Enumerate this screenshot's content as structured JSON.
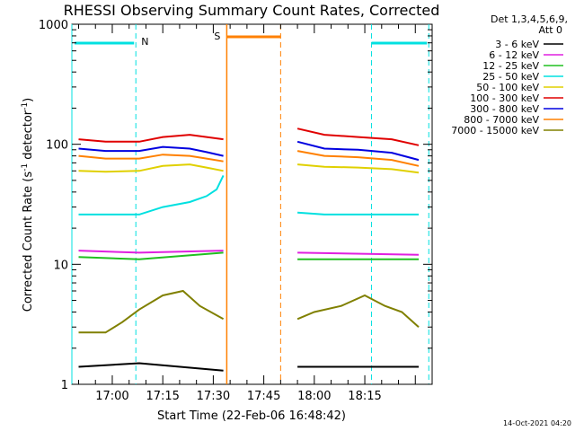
{
  "chart_data": {
    "type": "line",
    "title": "RHESSI Observing Summary Count Rates, Corrected",
    "xlabel": "Start Time (22-Feb-06 16:48:42)",
    "ylabel": "Corrected Count Rate (s",
    "ylabel_sup": "-1",
    "ylabel_tail": " detector",
    "ylabel_sup2": "-1",
    "ylabel_close": ")",
    "y_scale": "log",
    "ylim": [
      1,
      1000
    ],
    "xlim_minutes_after_start": [
      0,
      107
    ],
    "x_ticks": [
      {
        "minute": 12,
        "label": "17:00"
      },
      {
        "minute": 27,
        "label": "17:15"
      },
      {
        "minute": 42,
        "label": "17:30"
      },
      {
        "minute": 57,
        "label": "17:45"
      },
      {
        "minute": 72,
        "label": "18:00"
      },
      {
        "minute": 87,
        "label": "18:15"
      }
    ],
    "y_ticks": [
      {
        "value": 1,
        "label": "1"
      },
      {
        "value": 10,
        "label": "10"
      },
      {
        "value": 100,
        "label": "100"
      },
      {
        "value": 1000,
        "label": "1000"
      }
    ],
    "legend_header": [
      "Det 1,3,4,5,6,9,",
      "Att 0"
    ],
    "legend_placement": "right",
    "series": [
      {
        "name": "3 - 6 keV",
        "color": "#000000",
        "segments": [
          {
            "x": [
              2,
              20,
              45
            ],
            "y": [
              1.4,
              1.5,
              1.3
            ]
          },
          {
            "x": [
              67,
              103
            ],
            "y": [
              1.4,
              1.4
            ]
          }
        ]
      },
      {
        "name": "6 - 12 keV",
        "color": "#e020e0",
        "segments": [
          {
            "x": [
              2,
              20,
              45
            ],
            "y": [
              13,
              12.5,
              13
            ]
          },
          {
            "x": [
              67,
              103
            ],
            "y": [
              12.5,
              12
            ]
          }
        ]
      },
      {
        "name": "12 - 25 keV",
        "color": "#20c020",
        "segments": [
          {
            "x": [
              2,
              20,
              45
            ],
            "y": [
              11.5,
              11,
              12.5
            ]
          },
          {
            "x": [
              67,
              103
            ],
            "y": [
              11,
              11
            ]
          }
        ]
      },
      {
        "name": "25 - 50 keV",
        "color": "#00e0e0",
        "segments": [
          {
            "x": [
              2,
              10,
              20,
              27,
              35,
              40,
              43,
              45
            ],
            "y": [
              26,
              26,
              26,
              30,
              33,
              37,
              42,
              55
            ]
          },
          {
            "x": [
              67,
              75,
              85,
              95,
              103
            ],
            "y": [
              27,
              26,
              26,
              26,
              26
            ]
          }
        ]
      },
      {
        "name": "50 - 100 keV",
        "color": "#e0d000",
        "segments": [
          {
            "x": [
              2,
              10,
              20,
              27,
              35,
              40,
              45
            ],
            "y": [
              60,
              59,
              60,
              66,
              68,
              64,
              60
            ]
          },
          {
            "x": [
              67,
              75,
              85,
              95,
              103
            ],
            "y": [
              68,
              65,
              64,
              62,
              58
            ]
          }
        ]
      },
      {
        "name": "100 - 300 keV",
        "color": "#e00000",
        "segments": [
          {
            "x": [
              2,
              10,
              20,
              27,
              35,
              40,
              45
            ],
            "y": [
              110,
              105,
              105,
              115,
              120,
              115,
              110
            ]
          },
          {
            "x": [
              67,
              75,
              85,
              95,
              103
            ],
            "y": [
              135,
              120,
              115,
              110,
              98
            ]
          }
        ]
      },
      {
        "name": "300 - 800 keV",
        "color": "#0000e0",
        "segments": [
          {
            "x": [
              2,
              10,
              20,
              27,
              35,
              40,
              45
            ],
            "y": [
              92,
              88,
              88,
              95,
              92,
              86,
              80
            ]
          },
          {
            "x": [
              67,
              75,
              85,
              95,
              103
            ],
            "y": [
              105,
              92,
              90,
              85,
              74
            ]
          }
        ]
      },
      {
        "name": "800 - 7000 keV",
        "color": "#ff8000",
        "segments": [
          {
            "x": [
              2,
              10,
              20,
              27,
              35,
              40,
              45
            ],
            "y": [
              80,
              76,
              76,
              82,
              80,
              76,
              72
            ]
          },
          {
            "x": [
              67,
              75,
              85,
              95,
              103
            ],
            "y": [
              88,
              80,
              78,
              74,
              66
            ]
          }
        ]
      },
      {
        "name": "7000 - 15000 keV",
        "color": "#808000",
        "segments": [
          {
            "x": [
              2,
              10,
              15,
              20,
              27,
              33,
              38,
              45
            ],
            "y": [
              2.7,
              2.7,
              3.3,
              4.2,
              5.5,
              6,
              4.5,
              3.5
            ]
          },
          {
            "x": [
              67,
              72,
              80,
              87,
              93,
              98,
              103
            ],
            "y": [
              3.5,
              4,
              4.5,
              5.5,
              4.5,
              4,
              3
            ]
          }
        ]
      }
    ],
    "annotations": [
      {
        "text": "N",
        "color": "#00e0e0"
      },
      {
        "text": "S",
        "color": "#ff8000"
      }
    ],
    "night_periods": [
      {
        "from": 0,
        "to": 19,
        "color": "#00e0e0"
      },
      {
        "from": 89,
        "to": 106,
        "color": "#00e0e0"
      }
    ],
    "saa_period": {
      "from": 46,
      "to": 62,
      "color": "#ff8000"
    },
    "timestamp": "14-Oct-2021 04:20"
  }
}
